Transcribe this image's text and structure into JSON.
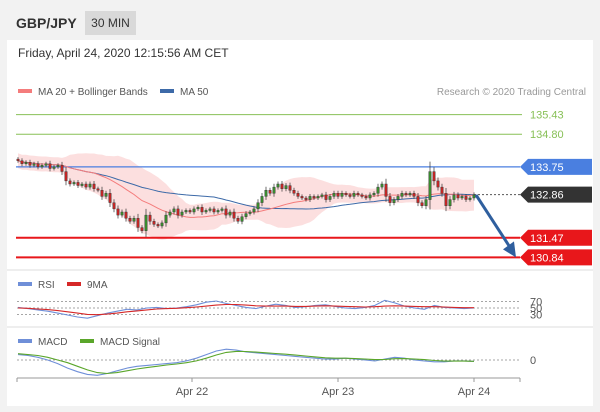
{
  "header": {
    "pair": "GBP/JPY",
    "timeframe": "30 MIN"
  },
  "timestamp": "Friday, April 24, 2020 12:15:56 AM CET",
  "copyright": "Research © 2020 Trading Central",
  "colors": {
    "resistance": "#88c057",
    "pivot": "#4a7fe0",
    "support": "#e8171b",
    "ma20": "#f47c7c",
    "ma50": "#3d6aa8",
    "bands": "#fbd9d9",
    "rsi": "#6f8fd8",
    "rsi_ma": "#d62828",
    "macd": "#6f8fd8",
    "macd_signal": "#5aa62a",
    "candle_up": "#3a8a2f",
    "candle_down": "#c02626",
    "arrow": "#2f5f9e"
  },
  "chart_data": [
    {
      "type": "candlestick",
      "legend": [
        {
          "name": "MA 20 + Bollinger Bands",
          "color": "#f47c7c"
        },
        {
          "name": "MA 50",
          "color": "#3d6aa8"
        }
      ],
      "ylim": [
        130.5,
        135.9
      ],
      "x_ticks": [
        "Apr 22",
        "Apr 23",
        "Apr 24"
      ],
      "levels": [
        {
          "label": "135.43",
          "value": 135.43,
          "kind": "resistance"
        },
        {
          "label": "134.80",
          "value": 134.8,
          "kind": "resistance"
        },
        {
          "label": "133.75",
          "value": 133.75,
          "kind": "pivot"
        },
        {
          "label": "132.86",
          "value": 132.86,
          "kind": "current"
        },
        {
          "label": "131.47",
          "value": 131.47,
          "kind": "support"
        },
        {
          "label": "130.84",
          "value": 130.84,
          "kind": "support"
        }
      ],
      "closes": [
        133.95,
        133.85,
        133.9,
        133.8,
        133.85,
        133.75,
        133.8,
        133.85,
        133.7,
        133.75,
        133.8,
        133.6,
        133.3,
        133.2,
        133.25,
        133.15,
        133.2,
        133.1,
        133.2,
        133.05,
        133.0,
        132.8,
        132.9,
        132.6,
        132.4,
        132.2,
        132.3,
        132.1,
        132.0,
        132.1,
        131.8,
        131.7,
        132.2,
        132.0,
        131.9,
        131.85,
        131.95,
        132.2,
        132.3,
        132.4,
        132.2,
        132.3,
        132.35,
        132.3,
        132.4,
        132.45,
        132.3,
        132.35,
        132.4,
        132.3,
        132.35,
        132.4,
        132.2,
        132.3,
        132.1,
        132.0,
        132.15,
        132.25,
        132.3,
        132.4,
        132.6,
        132.8,
        133.0,
        132.9,
        133.1,
        133.2,
        133.05,
        133.15,
        133.0,
        132.9,
        132.8,
        132.75,
        132.7,
        132.8,
        132.75,
        132.8,
        132.85,
        132.7,
        132.8,
        132.9,
        132.8,
        132.9,
        132.85,
        132.8,
        132.9,
        132.85,
        132.8,
        132.75,
        132.85,
        132.9,
        133.1,
        133.2,
        132.8,
        132.6,
        132.7,
        132.8,
        132.9,
        132.85,
        132.9,
        132.8,
        132.6,
        132.5,
        132.7,
        133.6,
        133.3,
        133.1,
        132.9,
        132.5,
        132.7,
        132.85,
        132.75,
        132.8,
        132.7,
        132.75,
        132.85
      ]
    },
    {
      "type": "line",
      "legend": [
        {
          "name": "RSI",
          "color": "#6f8fd8"
        },
        {
          "name": "9MA",
          "color": "#d62828"
        }
      ],
      "levels": [
        {
          "label": "70",
          "value": 70
        },
        {
          "label": "50",
          "value": 50
        },
        {
          "label": "30",
          "value": 30
        }
      ],
      "ylim": [
        0,
        100
      ],
      "series": [
        {
          "name": "RSI",
          "values": [
            52,
            48,
            44,
            40,
            34,
            28,
            22,
            18,
            26,
            34,
            40,
            46,
            44,
            50,
            52,
            48,
            50,
            54,
            60,
            68,
            72,
            64,
            58,
            52,
            48,
            56,
            62,
            58,
            52,
            54,
            58,
            60,
            55,
            50,
            48,
            52,
            58,
            74,
            66,
            56,
            50,
            46,
            58,
            52,
            50,
            48,
            50
          ]
        },
        {
          "name": "9MA",
          "values": [
            50,
            49,
            47,
            45,
            42,
            38,
            34,
            30,
            29,
            31,
            34,
            38,
            41,
            44,
            47,
            48,
            49,
            51,
            53,
            56,
            59,
            61,
            61,
            59,
            57,
            56,
            56,
            56,
            55,
            55,
            56,
            57,
            56,
            55,
            54,
            53,
            54,
            56,
            57,
            56,
            55,
            54,
            54,
            53,
            52,
            51,
            51
          ]
        }
      ]
    },
    {
      "type": "line",
      "legend": [
        {
          "name": "MACD",
          "color": "#6f8fd8"
        },
        {
          "name": "MACD Signal",
          "color": "#5aa62a"
        }
      ],
      "levels": [
        {
          "label": "0",
          "value": 0
        }
      ],
      "ylim": [
        -1,
        1
      ],
      "series": [
        {
          "name": "MACD",
          "values": [
            0.3,
            0.25,
            0.15,
            0.0,
            -0.2,
            -0.45,
            -0.65,
            -0.8,
            -0.85,
            -0.75,
            -0.6,
            -0.45,
            -0.35,
            -0.3,
            -0.25,
            -0.2,
            -0.15,
            -0.05,
            0.1,
            0.3,
            0.5,
            0.6,
            0.55,
            0.45,
            0.4,
            0.35,
            0.3,
            0.25,
            0.2,
            0.15,
            0.1,
            0.05,
            0.05,
            0.1,
            0.05,
            0.0,
            -0.05,
            0.05,
            0.15,
            0.1,
            0.0,
            -0.05,
            -0.1,
            -0.1,
            -0.05,
            -0.05,
            -0.08
          ]
        },
        {
          "name": "MACD Signal",
          "values": [
            0.35,
            0.3,
            0.25,
            0.15,
            0.0,
            -0.15,
            -0.35,
            -0.55,
            -0.7,
            -0.75,
            -0.7,
            -0.6,
            -0.5,
            -0.42,
            -0.35,
            -0.28,
            -0.22,
            -0.15,
            -0.05,
            0.1,
            0.28,
            0.42,
            0.48,
            0.47,
            0.44,
            0.4,
            0.36,
            0.32,
            0.27,
            0.22,
            0.17,
            0.12,
            0.1,
            0.1,
            0.08,
            0.05,
            0.02,
            0.03,
            0.07,
            0.08,
            0.05,
            0.02,
            -0.03,
            -0.06,
            -0.06,
            -0.06,
            -0.07
          ]
        }
      ]
    }
  ]
}
